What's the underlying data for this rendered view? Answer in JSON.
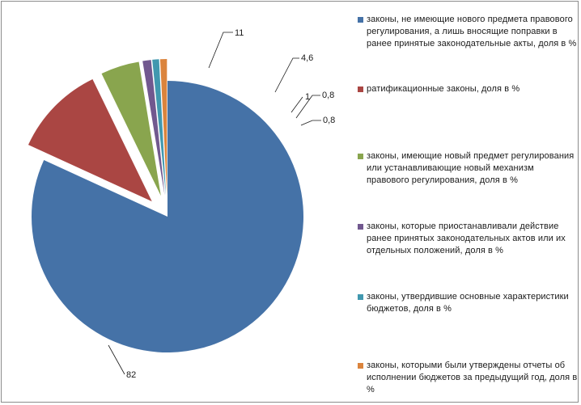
{
  "chart_data": {
    "type": "pie",
    "exploded": true,
    "slices": [
      {
        "label": "законы, не имеющие нового предмета правового регулирования, а лишь вносящие поправки в ранее принятые законодательные акты, доля в %",
        "value": 82,
        "value_label": "82",
        "color": "#4572A7"
      },
      {
        "label": "ратификационные законы, доля в %",
        "value": 11,
        "value_label": "11",
        "color": "#AA4643"
      },
      {
        "label": "законы, имеющие новый предмет регулирования или устанавливающие новый механизм правового регулирования, доля в %",
        "value": 4.6,
        "value_label": "4,6",
        "color": "#89A54E"
      },
      {
        "label": "законы, которые приостанавливали действие ранее принятых законодательных актов или их отдельных положений, доля в %",
        "value": 1,
        "value_label": "1",
        "color": "#71588F"
      },
      {
        "label": "законы, утвердившие основные характеристики бюджетов, доля в %",
        "value": 0.8,
        "value_label": "0,8",
        "color": "#4198AF"
      },
      {
        "label": "законы, которыми были утверждены отчеты об исполнении бюджетов за предыдущий год, доля в %",
        "value": 0.8,
        "value_label": "0,8",
        "color": "#DB843D"
      }
    ],
    "legend_position": "right"
  }
}
